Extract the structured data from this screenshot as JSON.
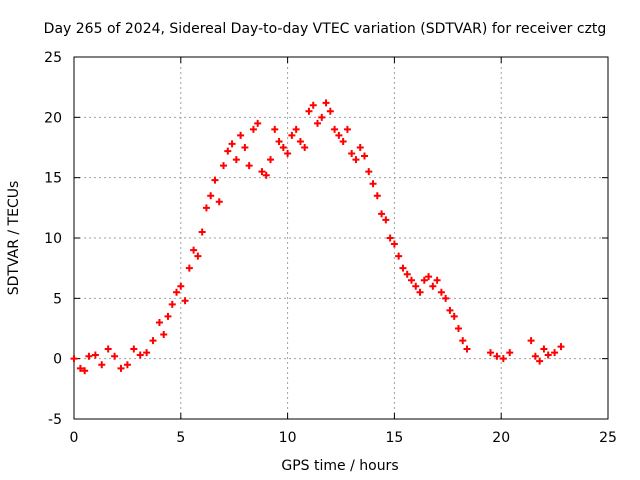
{
  "chart_data": {
    "type": "scatter",
    "title": "Day 265 of 2024, Sidereal Day-to-day VTEC variation (SDTVAR) for receiver cztg",
    "xlabel": "GPS time / hours",
    "ylabel": "SDTVAR / TECUs",
    "xlim": [
      0,
      25
    ],
    "ylim": [
      -5,
      25
    ],
    "xticks": [
      "0",
      "5",
      "10",
      "15",
      "20",
      "25"
    ],
    "yticks": [
      "-5",
      "0",
      "5",
      "10",
      "15",
      "20",
      "25"
    ],
    "grid": true,
    "marker": "+",
    "series_color": "#ff0000",
    "series": [
      {
        "name": "SDTVAR",
        "x": [
          0.0,
          0.3,
          0.5,
          0.7,
          1.0,
          1.3,
          1.6,
          1.9,
          2.2,
          2.5,
          2.8,
          3.1,
          3.4,
          3.7,
          4.0,
          4.2,
          4.4,
          4.6,
          4.8,
          5.0,
          5.2,
          5.4,
          5.6,
          5.8,
          6.0,
          6.2,
          6.4,
          6.6,
          6.8,
          7.0,
          7.2,
          7.4,
          7.6,
          7.8,
          8.0,
          8.2,
          8.4,
          8.6,
          8.8,
          9.0,
          9.2,
          9.4,
          9.6,
          9.8,
          10.0,
          10.2,
          10.4,
          10.6,
          10.8,
          11.0,
          11.2,
          11.4,
          11.6,
          11.8,
          12.0,
          12.2,
          12.4,
          12.6,
          12.8,
          13.0,
          13.2,
          13.4,
          13.6,
          13.8,
          14.0,
          14.2,
          14.4,
          14.6,
          14.8,
          15.0,
          15.2,
          15.4,
          15.6,
          15.8,
          16.0,
          16.2,
          16.4,
          16.6,
          16.8,
          17.0,
          17.2,
          17.4,
          17.6,
          17.8,
          18.0,
          18.2,
          18.4,
          19.5,
          19.8,
          20.1,
          20.4,
          21.4,
          21.6,
          21.8,
          22.0,
          22.2,
          22.5,
          22.8
        ],
        "y": [
          0.0,
          -0.8,
          -1.0,
          0.2,
          0.3,
          -0.5,
          0.8,
          0.2,
          -0.8,
          -0.5,
          0.8,
          0.3,
          0.5,
          1.5,
          3.0,
          2.0,
          3.5,
          4.5,
          5.5,
          6.0,
          4.8,
          7.5,
          9.0,
          8.5,
          10.5,
          12.5,
          13.5,
          14.8,
          13.0,
          16.0,
          17.2,
          17.8,
          16.5,
          18.5,
          17.5,
          16.0,
          19.0,
          19.5,
          15.5,
          15.2,
          16.5,
          19.0,
          18.0,
          17.5,
          17.0,
          18.5,
          19.0,
          18.0,
          17.5,
          20.5,
          21.0,
          19.5,
          20.0,
          21.2,
          20.5,
          19.0,
          18.5,
          18.0,
          19.0,
          17.0,
          16.5,
          17.5,
          16.8,
          15.5,
          14.5,
          13.5,
          12.0,
          11.5,
          10.0,
          9.5,
          8.5,
          7.5,
          7.0,
          6.5,
          6.0,
          5.5,
          6.5,
          6.8,
          6.0,
          6.5,
          5.5,
          5.0,
          4.0,
          3.5,
          2.5,
          1.5,
          0.8,
          0.5,
          0.2,
          0.0,
          0.5,
          1.5,
          0.2,
          -0.2,
          0.8,
          0.3,
          0.5,
          1.0
        ]
      }
    ]
  }
}
